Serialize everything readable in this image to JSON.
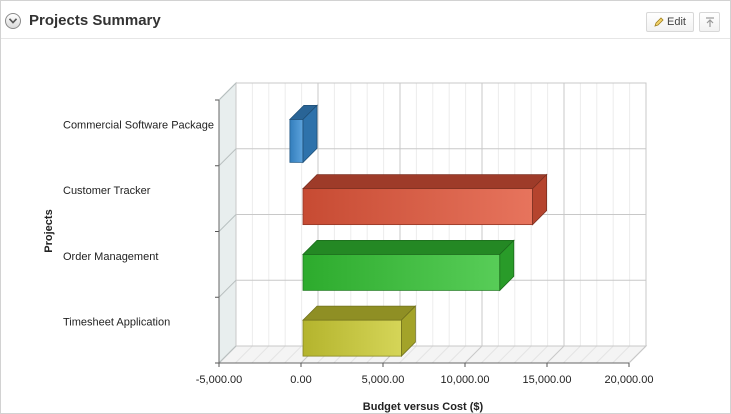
{
  "region": {
    "title": "Projects Summary",
    "edit_label": "Edit"
  },
  "colors": {
    "commercial": "#3a8fd6",
    "customer": "#e2553a",
    "order": "#33c233",
    "timesheet": "#cccc33"
  },
  "chart_data": {
    "type": "bar",
    "orientation": "horizontal",
    "style": "3d",
    "title": "",
    "xlabel": "Budget versus Cost ($)",
    "ylabel": "Projects",
    "categories": [
      "Commercial Software Package",
      "Customer Tracker",
      "Order Management",
      "Timesheet Application"
    ],
    "series": [
      {
        "values": [
          {
            "start": -800,
            "end": 0
          },
          {
            "start": 0,
            "end": 14000
          },
          {
            "start": 0,
            "end": 12000
          },
          {
            "start": 0,
            "end": 6000
          }
        ]
      }
    ],
    "xlim": [
      -5000,
      20000
    ],
    "ticks": [
      "-5,000.00",
      "0.00",
      "5,000.00",
      "10,000.00",
      "15,000.00",
      "20,000.00"
    ],
    "tick_values": [
      -5000,
      0,
      5000,
      10000,
      15000,
      20000
    ],
    "grid": true
  }
}
